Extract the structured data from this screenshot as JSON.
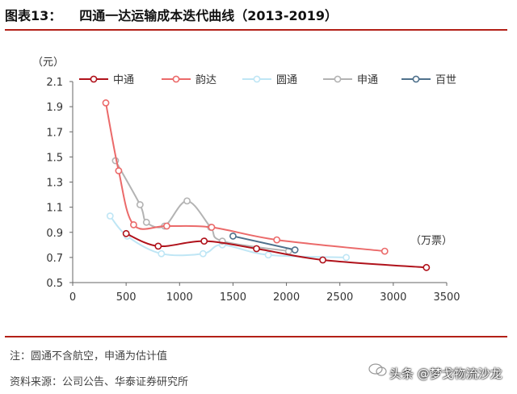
{
  "header": {
    "fig_label": "图表13：",
    "fig_title": "四通一达运输成本迭代曲线（2013-2019）"
  },
  "footer": {
    "note": "注：圆通不含航空，申通为估计值",
    "source": "资料来源：公司公告、华泰证券研究所",
    "watermark": "头条 @梦戈物流沙龙"
  },
  "chart_data": {
    "type": "line",
    "yunit": "（元）",
    "xunit": "（万票）",
    "xlim": [
      0,
      3500
    ],
    "ylim": [
      0.5,
      2.1
    ],
    "xticks": [
      "0",
      "500",
      "1000",
      "1500",
      "2000",
      "2500",
      "3000",
      "3500"
    ],
    "yticks": [
      "0.5",
      "0.7",
      "0.9",
      "1.1",
      "1.3",
      "1.5",
      "1.7",
      "1.9",
      "2.1"
    ],
    "grid": false,
    "legend_position": "top",
    "series": [
      {
        "name": "中通",
        "color": "#b0121b",
        "points": [
          [
            500,
            0.89
          ],
          [
            800,
            0.79
          ],
          [
            1230,
            0.83
          ],
          [
            1720,
            0.77
          ],
          [
            2340,
            0.68
          ],
          [
            3310,
            0.62
          ]
        ]
      },
      {
        "name": "韵达",
        "color": "#eb6a6a",
        "points": [
          [
            310,
            1.93
          ],
          [
            430,
            1.39
          ],
          [
            570,
            0.96
          ],
          [
            880,
            0.95
          ],
          [
            1300,
            0.94
          ],
          [
            1910,
            0.84
          ],
          [
            2920,
            0.75
          ]
        ]
      },
      {
        "name": "圆通",
        "color": "#bfe6f5",
        "points": [
          [
            350,
            1.03
          ],
          [
            510,
            0.87
          ],
          [
            830,
            0.73
          ],
          [
            1220,
            0.73
          ],
          [
            1400,
            0.8
          ],
          [
            1830,
            0.72
          ],
          [
            2560,
            0.7
          ]
        ]
      },
      {
        "name": "申通",
        "color": "#b3b3b3",
        "points": [
          [
            400,
            1.47
          ],
          [
            630,
            1.12
          ],
          [
            690,
            0.98
          ],
          [
            860,
            0.95
          ],
          [
            1070,
            1.15
          ],
          [
            1290,
            0.94
          ],
          [
            1400,
            0.83
          ],
          [
            2020,
            0.75
          ]
        ]
      },
      {
        "name": "百世",
        "color": "#4f718c",
        "points": [
          [
            1500,
            0.87
          ],
          [
            2080,
            0.76
          ]
        ]
      }
    ]
  }
}
